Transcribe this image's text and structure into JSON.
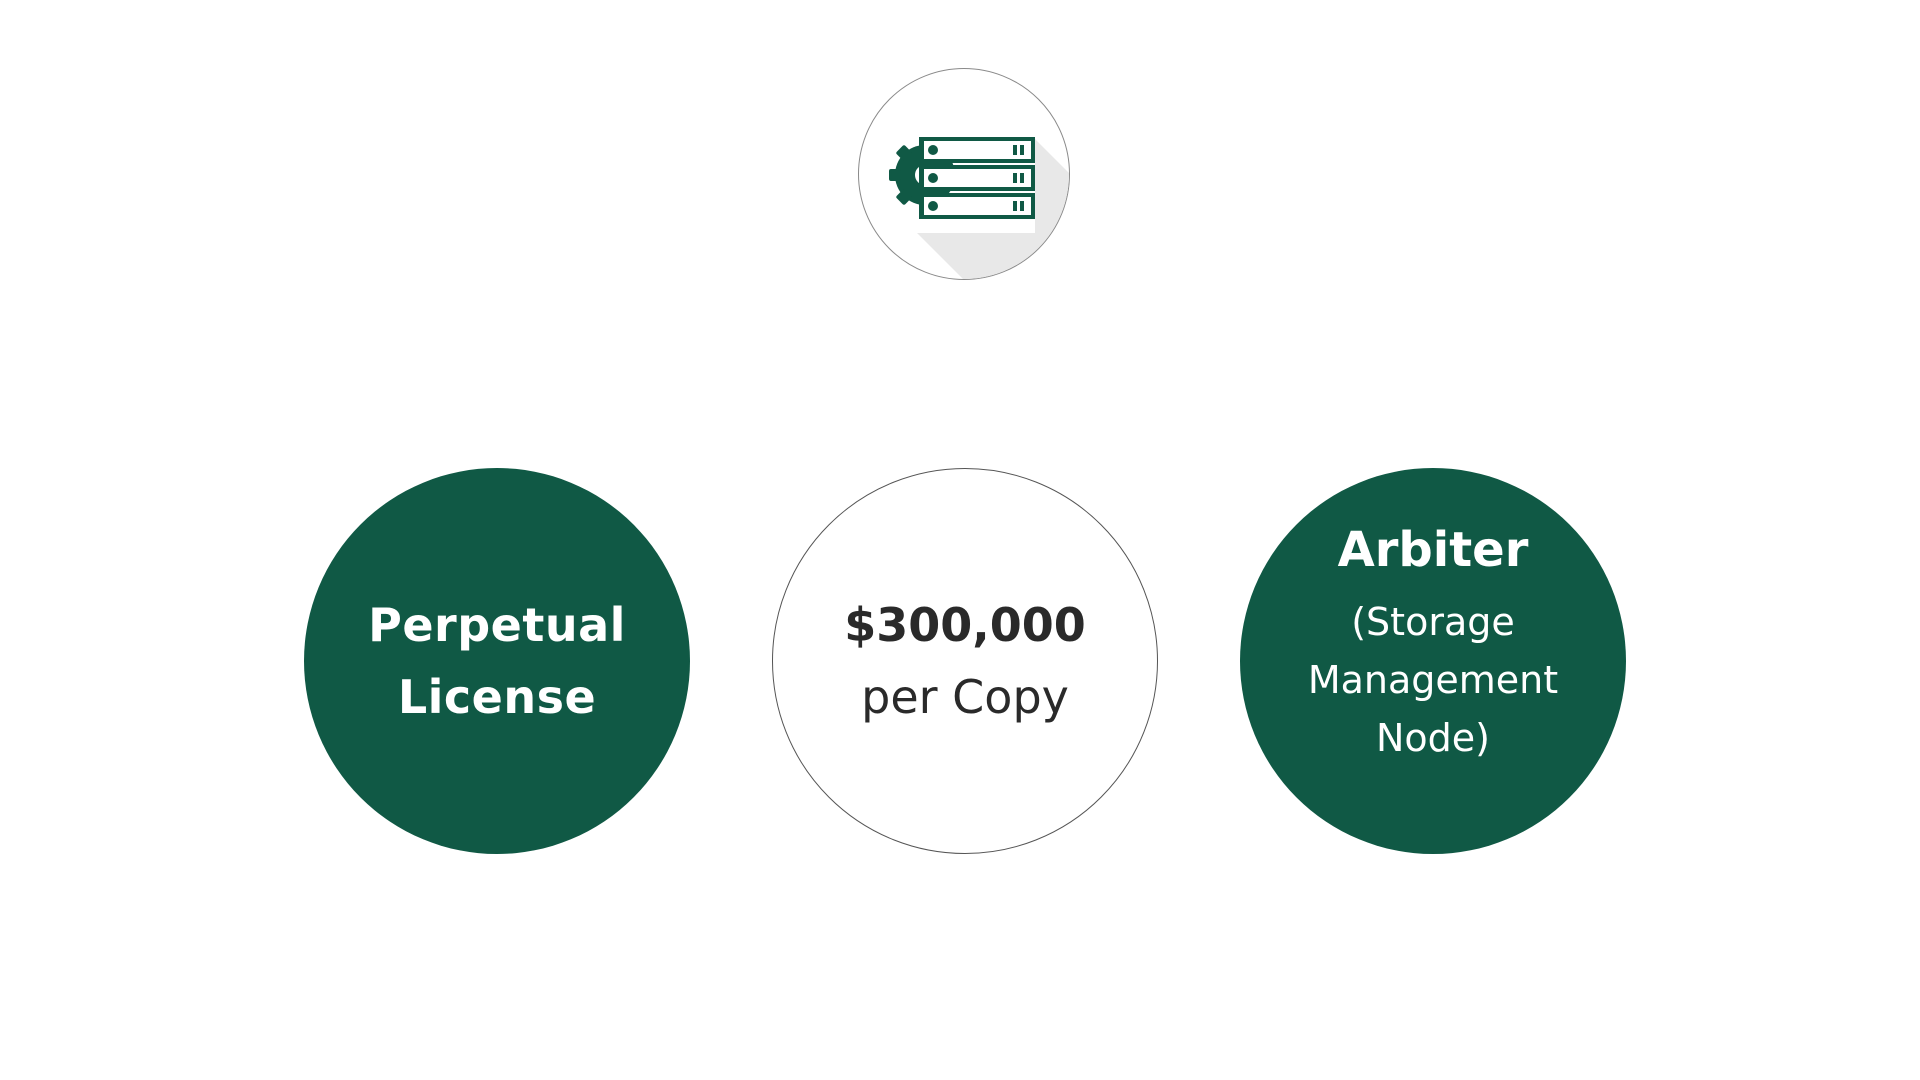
{
  "colors": {
    "brand_green": "#105945",
    "outline_gray": "#555555",
    "shadow_gray": "#e8e8e8"
  },
  "header_icon": {
    "name": "storage-server-gear-icon"
  },
  "left_circle": {
    "line1": "Perpetual",
    "line2": "License"
  },
  "middle_circle": {
    "price": "$300,000",
    "unit": "per Copy"
  },
  "right_circle": {
    "title": "Arbiter",
    "sub_line1": "(Storage",
    "sub_line2": "Management",
    "sub_line3": "Node)"
  }
}
